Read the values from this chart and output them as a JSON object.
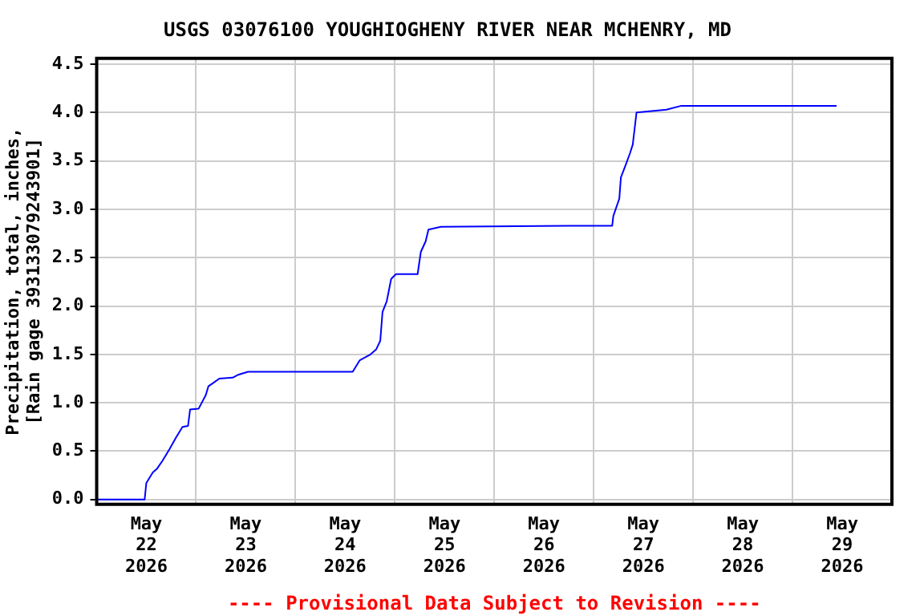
{
  "chart_data": {
    "type": "line",
    "title": "USGS 03076100 YOUGHIOGHENY RIVER NEAR MCHENRY, MD",
    "ylabel": "Precipitation, total, inches, [Rain gage 393133079243901]",
    "annotations": [
      "---- Provisional Data Subject to Revision ----"
    ],
    "x": [
      "2026-05-22T00:00",
      "2026-05-22T11:35",
      "2026-05-22T11:59",
      "2026-05-22T13:33",
      "2026-05-22T14:36",
      "2026-05-22T15:53",
      "2026-05-22T17:35",
      "2026-05-22T19:09",
      "2026-05-22T20:43",
      "2026-05-22T22:03",
      "2026-05-22T22:33",
      "2026-05-23T00:38",
      "2026-05-23T02:21",
      "2026-05-23T02:58",
      "2026-05-23T04:18",
      "2026-05-23T05:36",
      "2026-05-23T08:51",
      "2026-05-23T10:11",
      "2026-05-23T12:32",
      "2026-05-24T13:49",
      "2026-05-24T15:32",
      "2026-05-24T18:07",
      "2026-05-24T19:27",
      "2026-05-24T20:28",
      "2026-05-24T21:01",
      "2026-05-24T22:02",
      "2026-05-24T23:06",
      "2026-05-25T00:16",
      "2026-05-25T05:29",
      "2026-05-25T06:16",
      "2026-05-25T07:26",
      "2026-05-25T08:06",
      "2026-05-25T11:07",
      "2026-05-26T17:46",
      "2026-05-27T04:28",
      "2026-05-27T04:44",
      "2026-05-27T06:11",
      "2026-05-27T06:34",
      "2026-05-27T07:28",
      "2026-05-27T08:46",
      "2026-05-27T09:26",
      "2026-05-27T10:20",
      "2026-05-27T17:32",
      "2026-05-27T21:11",
      "2026-05-29T10:38"
    ],
    "series": [
      {
        "color": "#0000ff",
        "values": [
          0,
          0,
          0.17,
          0.28,
          0.32,
          0.4,
          0.52,
          0.64,
          0.75,
          0.76,
          0.93,
          0.94,
          1.08,
          1.17,
          1.21,
          1.25,
          1.26,
          1.29,
          1.32,
          1.32,
          1.44,
          1.5,
          1.55,
          1.64,
          1.94,
          2.05,
          2.28,
          2.33,
          2.33,
          2.56,
          2.67,
          2.79,
          2.82,
          2.83,
          2.83,
          2.93,
          3.11,
          3.33,
          3.43,
          3.58,
          3.67,
          4.0,
          4.03,
          4.07,
          4.07
        ]
      }
    ],
    "xlim": [
      "2026-05-22T00:00",
      "2026-05-30T00:00"
    ],
    "xticks": [
      {
        "value": "2026-05-22T00:00",
        "label": null
      },
      {
        "value": "2026-05-22T12:00",
        "label": "May 22 2026"
      },
      {
        "value": "2026-05-23T00:00",
        "label": null
      },
      {
        "value": "2026-05-23T12:00",
        "label": "May 23 2026"
      },
      {
        "value": "2026-05-24T00:00",
        "label": null
      },
      {
        "value": "2026-05-24T12:00",
        "label": "May 24 2026"
      },
      {
        "value": "2026-05-25T00:00",
        "label": null
      },
      {
        "value": "2026-05-25T12:00",
        "label": "May 25 2026"
      },
      {
        "value": "2026-05-26T00:00",
        "label": null
      },
      {
        "value": "2026-05-26T12:00",
        "label": "May 26 2026"
      },
      {
        "value": "2026-05-27T00:00",
        "label": null
      },
      {
        "value": "2026-05-27T12:00",
        "label": "May 27 2026"
      },
      {
        "value": "2026-05-28T00:00",
        "label": null
      },
      {
        "value": "2026-05-28T12:00",
        "label": "May 28 2026"
      },
      {
        "value": "2026-05-29T00:00",
        "label": null
      },
      {
        "value": "2026-05-29T12:00",
        "label": "May 29 2026"
      },
      {
        "value": "2026-05-30T00:00",
        "label": null
      }
    ],
    "ylim": [
      -0.05,
      4.56
    ],
    "yticks": [
      {
        "value": 0,
        "label": "0.0"
      },
      {
        "value": 0.5,
        "label": "0.5"
      },
      {
        "value": 1,
        "label": "1.0"
      },
      {
        "value": 1.5,
        "label": "1.5"
      },
      {
        "value": 2,
        "label": "2.0"
      },
      {
        "value": 2.5,
        "label": "2.5"
      },
      {
        "value": 3,
        "label": "3.0"
      },
      {
        "value": 3.5,
        "label": "3.5"
      },
      {
        "value": 4,
        "label": "4.0"
      },
      {
        "value": 4.5,
        "label": "4.5"
      }
    ],
    "grid": true,
    "legend": false,
    "marker": "none",
    "line_style": "solid"
  }
}
